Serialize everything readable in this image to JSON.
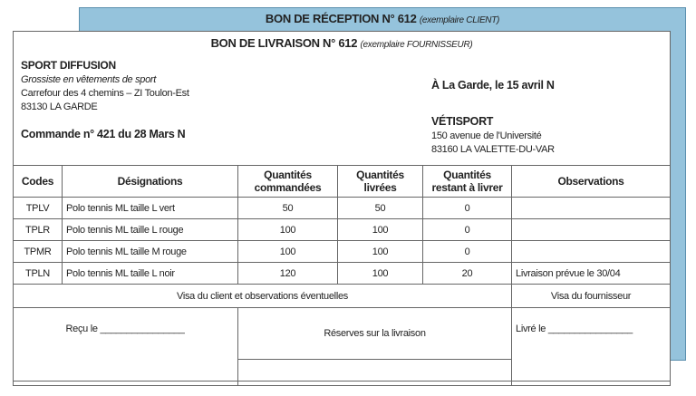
{
  "reception": {
    "title": "BON DE RÉCEPTION N° 612",
    "subtitle": "(exemplaire CLIENT)"
  },
  "livraison": {
    "title": "BON DE LIVRAISON N° 612",
    "subtitle": "(exemplaire FOURNISSEUR)"
  },
  "supplier": {
    "name": "SPORT DIFFUSION",
    "desc": "Grossiste en vêtements de sport",
    "address": "Carrefour des 4 chemins – ZI Toulon-Est",
    "city": "83130 LA GARDE"
  },
  "order": "Commande n° 421 du 28 Mars N",
  "date": "À La Garde, le 15 avril N",
  "client": {
    "name": "VÉTISPORT",
    "address": "150 avenue de l'Université",
    "city": "83160 LA VALETTE-DU-VAR"
  },
  "table": {
    "headers": [
      "Codes",
      "Désignations",
      "Quantités commandées",
      "Quantités livrées",
      "Quantités restant à livrer",
      "Observations"
    ],
    "rows": [
      [
        "TPLV",
        "Polo tennis ML taille L vert",
        "50",
        "50",
        "0",
        ""
      ],
      [
        "TPLR",
        "Polo tennis ML taille L rouge",
        "100",
        "100",
        "0",
        ""
      ],
      [
        "TPMR",
        "Polo tennis ML taille M rouge",
        "100",
        "100",
        "0",
        ""
      ],
      [
        "TPLN",
        "Polo tennis ML taille L noir",
        "120",
        "100",
        "20",
        "Livraison prévue le 30/04"
      ]
    ]
  },
  "footer": {
    "visa_client": "Visa du client et observations éventuelles",
    "visa_fournisseur": "Visa du fournisseur",
    "recu": "Reçu le ________________",
    "reserves": "Réserves sur la livraison",
    "livre": "Livré le ________________"
  }
}
